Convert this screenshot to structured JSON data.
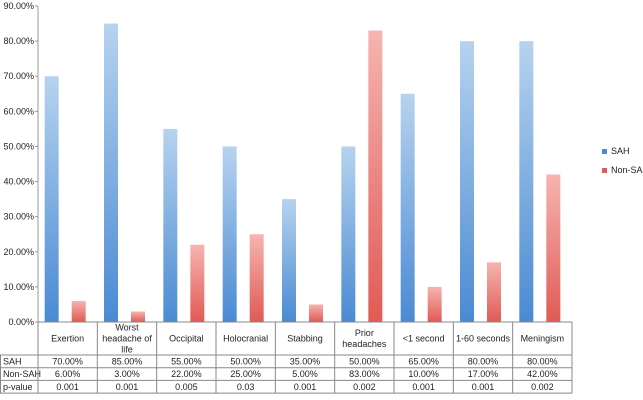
{
  "chart_data": {
    "type": "bar",
    "title": "",
    "xlabel": "",
    "ylabel": "",
    "ylim": [
      0,
      90
    ],
    "yticks": [
      "0.00%",
      "10.00%",
      "20.00%",
      "30.00%",
      "40.00%",
      "50.00%",
      "60.00%",
      "70.00%",
      "80.00%",
      "90.00%"
    ],
    "categories": [
      [
        "Exertion"
      ],
      [
        "Worst",
        "headache of",
        "life"
      ],
      [
        "Occipital"
      ],
      [
        "Holocranial"
      ],
      [
        "Stabbing"
      ],
      [
        "Prior",
        "headaches"
      ],
      [
        "<1 second"
      ],
      [
        "1-60 seconds"
      ],
      [
        "Meningism"
      ]
    ],
    "series": [
      {
        "name": "SAH",
        "values": [
          70,
          85,
          55,
          50,
          35,
          50,
          65,
          80,
          80
        ],
        "color_top": "#b6d3ef",
        "color_bottom": "#4a8ad3"
      },
      {
        "name": "Non-SAH",
        "values": [
          6,
          3,
          22,
          25,
          5,
          83,
          10,
          17,
          42
        ],
        "color_top": "#f6b4b0",
        "color_bottom": "#e05a55"
      }
    ],
    "legend": "right",
    "table": {
      "rows": [
        {
          "label": "SAH",
          "values": [
            "70.00%",
            "85.00%",
            "55.00%",
            "50.00%",
            "35.00%",
            "50.00%",
            "65.00%",
            "80.00%",
            "80.00%"
          ]
        },
        {
          "label": "Non-SAH",
          "values": [
            "6.00%",
            "3.00%",
            "22.00%",
            "25.00%",
            "5.00%",
            "83.00%",
            "10.00%",
            "17.00%",
            "42.00%"
          ]
        },
        {
          "label": "p-value",
          "values": [
            "0.001",
            "0.001",
            "0.005",
            "0.03",
            "0.001",
            "0.002",
            "0.001",
            "0.001",
            "0.002"
          ]
        }
      ]
    }
  }
}
